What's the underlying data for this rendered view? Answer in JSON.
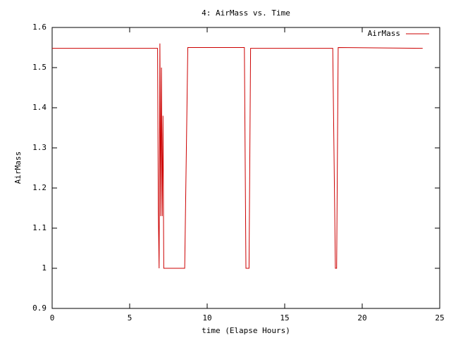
{
  "chart_data": {
    "type": "line",
    "title": "4: AirMass vs. Time",
    "xlabel": "time (Elapse Hours)",
    "ylabel": "AirMass",
    "x": [
      0,
      6.8,
      6.85,
      6.9,
      6.95,
      7.0,
      7.05,
      7.1,
      7.15,
      7.2,
      7.3,
      8.55,
      8.75,
      12.4,
      12.5,
      12.7,
      12.8,
      18.1,
      18.27,
      18.35,
      18.45,
      23.9
    ],
    "series": [
      {
        "name": "AirMass",
        "color": "#cc0000",
        "values": [
          1.548,
          1.548,
          1.14,
          1.0,
          1.56,
          1.13,
          1.5,
          1.13,
          1.38,
          1.0,
          1.0,
          1.0,
          1.55,
          1.55,
          1.0,
          1.0,
          1.548,
          1.548,
          1.0,
          1.0,
          1.55,
          1.548
        ]
      }
    ],
    "xlim": [
      0,
      25
    ],
    "xticks": [
      0,
      5,
      10,
      15,
      20,
      25
    ],
    "ylim": [
      0.9,
      1.6
    ],
    "yticks": [
      0.9,
      1,
      1.1,
      1.2,
      1.3,
      1.4,
      1.5,
      1.6
    ],
    "grid": false,
    "legend": "top-right"
  }
}
